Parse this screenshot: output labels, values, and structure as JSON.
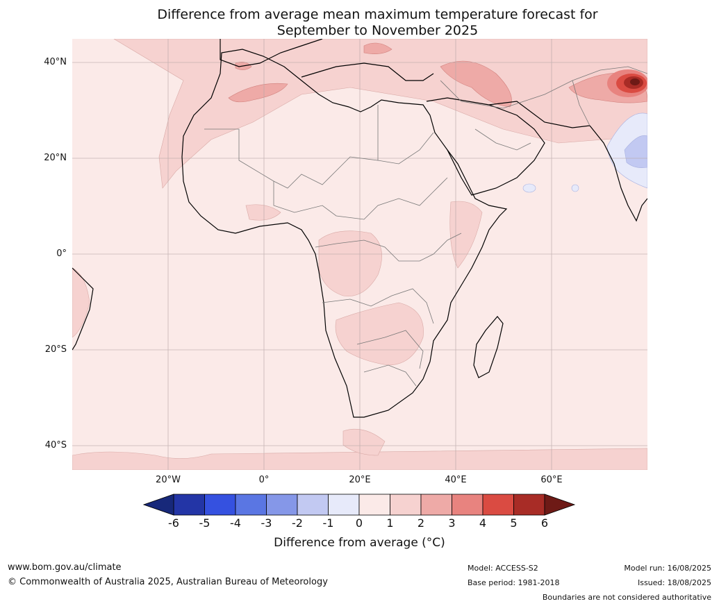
{
  "title": {
    "line1": "Difference from average mean maximum temperature forecast for",
    "line2": "September to November 2025"
  },
  "map": {
    "lat_labels": [
      "40°N",
      "20°N",
      "0°",
      "20°S",
      "40°S"
    ],
    "lon_labels": [
      "20°W",
      "0°",
      "20°E",
      "40°E",
      "60°E"
    ],
    "lat_values": [
      40,
      20,
      0,
      -20,
      -40
    ],
    "lon_values": [
      -20,
      0,
      20,
      40,
      60
    ],
    "extent": {
      "lon": [
        -40,
        80
      ],
      "lat": [
        -45,
        45
      ]
    }
  },
  "colorbar": {
    "ticks": [
      "-6",
      "-5",
      "-4",
      "-3",
      "-2",
      "-1",
      "0",
      "1",
      "2",
      "3",
      "4",
      "5",
      "6"
    ],
    "colors": [
      "#2335a6",
      "#3551e0",
      "#5a76e3",
      "#8597e8",
      "#c2c9f2",
      "#e7eafa",
      "#fbeae8",
      "#f6d2d0",
      "#eeaaa7",
      "#e8837f",
      "#da4b42",
      "#a82c26"
    ],
    "under_color": "#17287a",
    "over_color": "#6e1a16",
    "label": "Difference from average (°C)"
  },
  "footer": {
    "website": "www.bom.gov.au/climate",
    "copyright": "© Commonwealth of Australia 2025, Australian Bureau of Meteorology",
    "model": "Model: ACCESS-S2",
    "base_period": "Base period: 1981-2018",
    "model_run": "Model run: 16/08/2025",
    "issued": "Issued: 18/08/2025",
    "disclaimer": "Boundaries are not considered authoritative"
  }
}
